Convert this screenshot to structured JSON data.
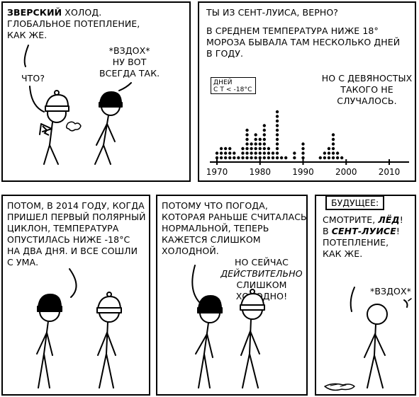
{
  "panel1": {
    "speech_a_bold": "Зверский",
    "speech_a_rest": " холод.\nГлобальное потепление,\nкак же.",
    "speech_b": "Что?",
    "speech_c": "*вздох*\nНу вот\nвсегда так."
  },
  "panel2": {
    "speech_a": "Ты из Сент-Луиса, верно?",
    "speech_b": "В среднем температура ниже 18°\nмороза бывала там несколько дней\nв году.",
    "speech_c": "Но с девяностых\nтакого не случалось.",
    "chart_legend": "Дней\nс t < -18°C"
  },
  "panel3": {
    "speech": "Потом, в 2014 году, когда\nпришел первый полярный\nциклон, температура\nопустилась ниже -18°C\nна два дня. И все сошли\nс ума."
  },
  "panel4": {
    "speech_a": "Потому что погода,\nкоторая раньше считалась\nнормальной, теперь\nкажется слишком\nхолодной.",
    "speech_b_1": "Но сейчас",
    "speech_b_2": "действительно",
    "speech_b_3": "слишком холодно!"
  },
  "panel5": {
    "caption": "Будущее:",
    "speech_a_1": "Смотрите, ",
    "speech_a_bold_1": "лёд",
    "speech_a_2": "!\nв ",
    "speech_a_bold_2": "Сент-Луисе",
    "speech_a_3": "!\nПотепление,\nкак же.",
    "speech_b": "*вздох*"
  },
  "chart_data": {
    "type": "scatter",
    "x_tick_labels": [
      "1970",
      "1980",
      "1990",
      "2000",
      "2010"
    ],
    "xlim": [
      1968,
      2013
    ],
    "values_by_year": [
      [
        1970,
        2
      ],
      [
        1971,
        3
      ],
      [
        1972,
        3
      ],
      [
        1973,
        3
      ],
      [
        1974,
        2
      ],
      [
        1975,
        1
      ],
      [
        1976,
        3
      ],
      [
        1977,
        7
      ],
      [
        1978,
        4
      ],
      [
        1979,
        6
      ],
      [
        1980,
        5
      ],
      [
        1981,
        8
      ],
      [
        1982,
        3
      ],
      [
        1983,
        2
      ],
      [
        1984,
        11
      ],
      [
        1985,
        1
      ],
      [
        1986,
        1
      ],
      [
        1987,
        0
      ],
      [
        1988,
        2
      ],
      [
        1989,
        0
      ],
      [
        1990,
        4
      ],
      [
        1991,
        0
      ],
      [
        1992,
        0
      ],
      [
        1993,
        0
      ],
      [
        1994,
        1
      ],
      [
        1995,
        2
      ],
      [
        1996,
        3
      ],
      [
        1997,
        6
      ],
      [
        1998,
        2
      ],
      [
        1999,
        1
      ]
    ]
  }
}
